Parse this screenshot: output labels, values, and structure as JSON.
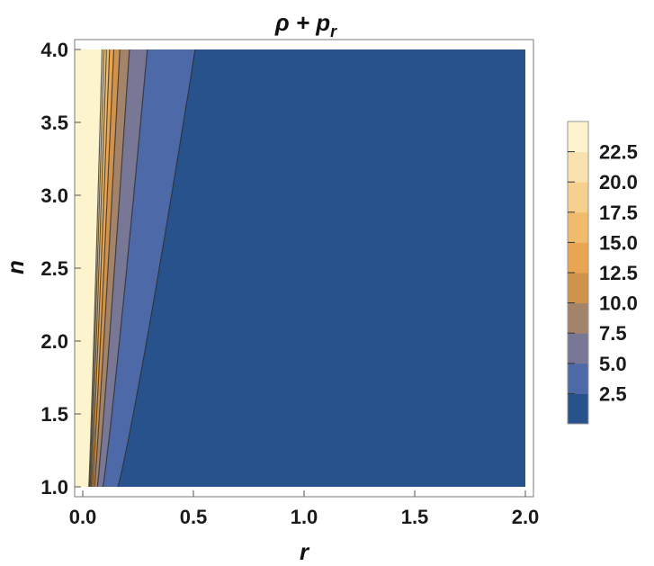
{
  "chart_data": {
    "type": "contour",
    "title": "ρ + p",
    "title_subscript": "r",
    "xlabel": "r",
    "ylabel": "n",
    "xlim": [
      0.0,
      2.0
    ],
    "ylim": [
      1.0,
      4.0
    ],
    "x_ticks": [
      "0.0",
      "0.5",
      "1.0",
      "1.5",
      "2.0"
    ],
    "y_ticks": [
      "1.0",
      "1.5",
      "2.0",
      "2.5",
      "3.0",
      "3.5",
      "4.0"
    ],
    "contour_levels": [
      2.5,
      5.0,
      7.5,
      10.0,
      12.5,
      15.0,
      17.5,
      20.0,
      22.5
    ],
    "legend_labels": [
      "22.5",
      "20.0",
      "17.5",
      "15.0",
      "12.5",
      "10.0",
      "7.5",
      "5.0",
      "2.5"
    ],
    "band_colors": [
      "#27528c",
      "#4d69a8",
      "#787796",
      "#a3846b",
      "#d0934b",
      "#e9a552",
      "#f0bb6d",
      "#f5d08e",
      "#f9e2ae",
      "#fdf3cc"
    ],
    "legend_position": "right",
    "grid": false
  }
}
